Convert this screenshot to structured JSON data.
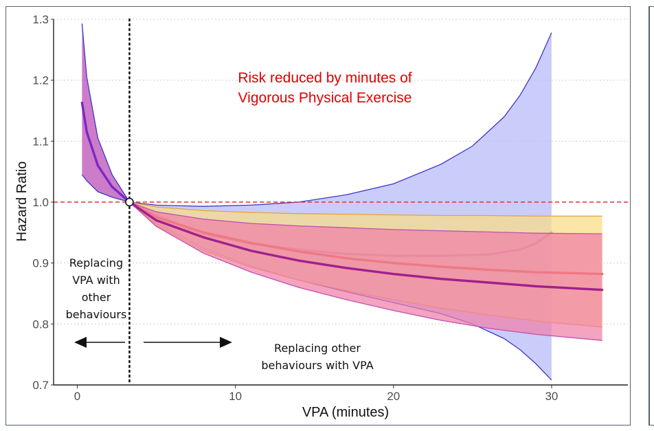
{
  "chart_data": {
    "type": "line",
    "xlabel": "VPA (minutes)",
    "ylabel": "Hazard Ratio",
    "xlim": [
      -1.5,
      35
    ],
    "ylim": [
      0.7,
      1.3
    ],
    "xticks": [
      0,
      10,
      20,
      30
    ],
    "yticks": [
      0.7,
      0.8,
      0.9,
      1.0,
      1.1,
      1.2,
      1.3
    ],
    "xtick_labels": [
      "0",
      "10",
      "20",
      "30"
    ],
    "ytick_labels": [
      "0.7",
      "0.8",
      "0.9",
      "1.0",
      "1.1",
      "1.2",
      "1.3"
    ],
    "grid": "dotted horizontal",
    "reference": {
      "x": 3.3,
      "y": 1.0
    },
    "annotations": {
      "title_note": [
        "Risk reduced by minutes of",
        "Vigorous Physical Exercise"
      ],
      "left_note": [
        "Replacing",
        "VPA with",
        "other",
        "behaviours"
      ],
      "right_note": [
        "Replacing other",
        "behaviours with VPA"
      ]
    },
    "colors": {
      "ref_line": "#e03030",
      "blue_band": "#b6b9f7",
      "blue_edge": "#3f37c9",
      "purple_line": "#7a28c8",
      "yellow_band": "#f9dd85",
      "yellow_edge": "#e8a33a",
      "orange_line": "#e8682a",
      "pink_band": "#f080a8",
      "pink_line": "#a0208c",
      "left_band": "#b84ab4"
    },
    "series": [
      {
        "kind": "band",
        "color": "#b6b9f7",
        "edge": "#3f37c9",
        "x": [
          3.3,
          5,
          8,
          11,
          14,
          17,
          20,
          23,
          25,
          27,
          28,
          29,
          30
        ],
        "upper": [
          1.0,
          0.995,
          0.993,
          0.995,
          1.0,
          1.012,
          1.03,
          1.062,
          1.092,
          1.14,
          1.175,
          1.22,
          1.278
        ],
        "lower": [
          1.0,
          0.965,
          0.924,
          0.895,
          0.872,
          0.853,
          0.835,
          0.817,
          0.8,
          0.776,
          0.758,
          0.735,
          0.708
        ]
      },
      {
        "kind": "line",
        "color": "#7a28c8",
        "x": [
          3.3,
          5,
          8,
          11,
          14,
          17,
          20,
          23,
          26,
          28,
          29,
          30
        ],
        "values": [
          1.0,
          0.978,
          0.948,
          0.932,
          0.922,
          0.915,
          0.912,
          0.912,
          0.914,
          0.922,
          0.932,
          0.95
        ]
      },
      {
        "kind": "band",
        "color": "#f9dd85",
        "edge": "#e8a33a",
        "x": [
          3.3,
          5,
          8,
          11,
          14,
          17,
          20,
          23,
          26,
          29,
          33.2
        ],
        "upper": [
          1.0,
          0.992,
          0.986,
          0.983,
          0.981,
          0.98,
          0.979,
          0.978,
          0.978,
          0.977,
          0.977
        ],
        "lower": [
          1.0,
          0.962,
          0.92,
          0.893,
          0.872,
          0.855,
          0.84,
          0.826,
          0.815,
          0.805,
          0.795
        ]
      },
      {
        "kind": "line",
        "color": "#e8682a",
        "x": [
          3.3,
          5,
          8,
          11,
          14,
          17,
          20,
          23,
          26,
          29,
          33.2
        ],
        "values": [
          1.0,
          0.975,
          0.95,
          0.933,
          0.919,
          0.908,
          0.9,
          0.894,
          0.889,
          0.885,
          0.882
        ]
      },
      {
        "kind": "band",
        "color": "#f080a8",
        "edge": "#c050b0",
        "x": [
          3.3,
          5,
          8,
          11,
          14,
          17,
          20,
          23,
          26,
          29,
          33.2
        ],
        "upper": [
          1.0,
          0.984,
          0.972,
          0.965,
          0.961,
          0.958,
          0.955,
          0.953,
          0.951,
          0.949,
          0.948
        ],
        "lower": [
          1.0,
          0.96,
          0.916,
          0.885,
          0.86,
          0.84,
          0.822,
          0.806,
          0.793,
          0.783,
          0.773
        ]
      },
      {
        "kind": "line",
        "color": "#a0208c",
        "x": [
          3.3,
          5,
          8,
          11,
          14,
          17,
          20,
          23,
          26,
          29,
          33.2
        ],
        "values": [
          1.0,
          0.97,
          0.942,
          0.92,
          0.904,
          0.892,
          0.882,
          0.874,
          0.868,
          0.862,
          0.856
        ]
      },
      {
        "kind": "band",
        "color": "#b84ab4",
        "edge": "#3f37c9",
        "x": [
          0.3,
          0.6,
          1.3,
          2.2,
          3.3
        ],
        "upper": [
          1.293,
          1.205,
          1.105,
          1.045,
          1.0
        ],
        "lower": [
          1.045,
          1.035,
          1.017,
          1.008,
          1.0
        ]
      },
      {
        "kind": "line",
        "color": "#7a28c8",
        "x": [
          0.3,
          0.6,
          1.3,
          2.2,
          3.3
        ],
        "values": [
          1.163,
          1.115,
          1.06,
          1.025,
          1.0
        ]
      }
    ]
  }
}
